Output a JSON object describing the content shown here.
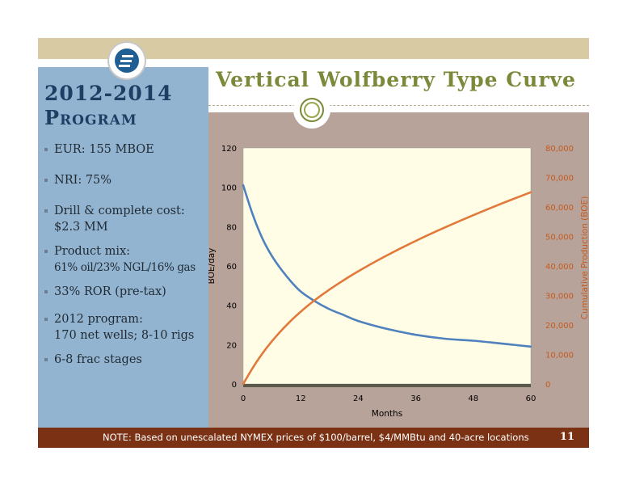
{
  "slide": {
    "program_title_line1": "2012-2014",
    "program_title_line2": "Program",
    "headline": "Vertical Wolfberry Type Curve",
    "bullets": [
      {
        "line1": "EUR: 155 MBOE",
        "line2": ""
      },
      {
        "line1": "NRI: 75%",
        "line2": ""
      },
      {
        "line1": "Drill & complete cost:",
        "line2": "$2.3 MM"
      },
      {
        "line1": "Product mix:",
        "line2": "61% oil/23% NGL/16% gas"
      },
      {
        "line1": "33% ROR (pre-tax)",
        "line2": ""
      },
      {
        "line1": "2012 program:",
        "line2": "170 net wells; 8-10 rigs"
      },
      {
        "line1": "6-8 frac stages",
        "line2": ""
      }
    ],
    "footer_note": "NOTE: Based on unescalated NYMEX prices of $100/barrel, $4/MMBtu and 40-acre locations",
    "page_number": "11"
  },
  "colors": {
    "left_panel": "#93b4d1",
    "chart_background": "#b8a39a",
    "plot_area": "#fffde6",
    "rate_series": "#4f81bd",
    "cumulative_series": "#e0793a",
    "footer": "#7b3214",
    "headline": "#7a8a3a",
    "title": "#1f3e63"
  },
  "chart_data": {
    "type": "line",
    "xlabel": "Months",
    "ylabel_left": "BOE/day",
    "ylabel_right": "Cumulative Production (BOE)",
    "xlim": [
      0,
      60
    ],
    "ylim_left": [
      0,
      120
    ],
    "ylim_right": [
      0,
      80000
    ],
    "x_ticks": [
      "0",
      "12",
      "24",
      "36",
      "48",
      "60"
    ],
    "y_ticks_left": [
      "0",
      "20",
      "40",
      "60",
      "80",
      "100",
      "120"
    ],
    "y_ticks_right": [
      "0",
      "10,000",
      "20,000",
      "30,000",
      "40,000",
      "50,000",
      "60,000",
      "70,000",
      "80,000"
    ],
    "grid": false,
    "series": [
      {
        "axis": "left",
        "x": [
          0,
          2,
          4,
          6,
          8,
          10,
          12,
          15,
          18,
          21,
          24,
          30,
          36,
          42,
          48,
          54,
          60
        ],
        "y": [
          101,
          86,
          74,
          65,
          58,
          52,
          47,
          42,
          38,
          35,
          32,
          28,
          25,
          23,
          22,
          20.5,
          19
        ]
      },
      {
        "axis": "right",
        "x": [
          0,
          2,
          4,
          6,
          8,
          10,
          12,
          15,
          18,
          21,
          24,
          30,
          36,
          42,
          48,
          54,
          60
        ],
        "y": [
          0,
          5500,
          10300,
          14500,
          18200,
          21500,
          24500,
          28500,
          32000,
          35200,
          38200,
          43600,
          48500,
          53000,
          57200,
          61200,
          65000
        ]
      }
    ]
  }
}
